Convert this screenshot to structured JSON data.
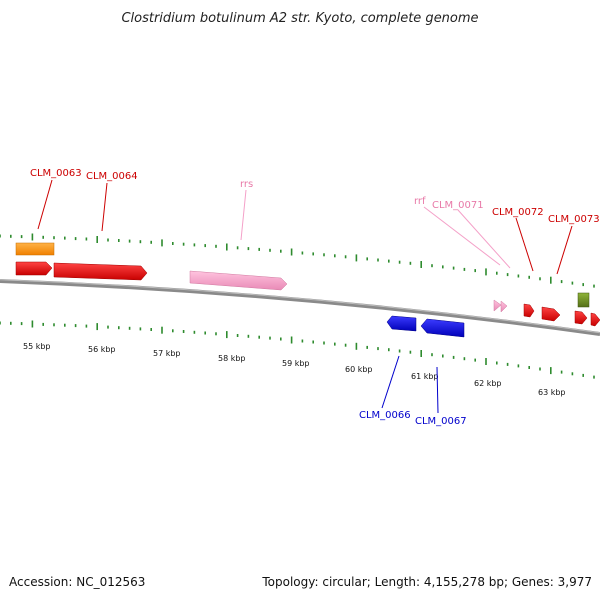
{
  "title": "Clostridium botulinum A2 str. Kyoto, complete genome",
  "footer": {
    "accession": "Accession: NC_012563",
    "topology": "Topology: circular; Length: 4,155,278 bp; Genes: 3,977"
  },
  "colors": {
    "backbone": "#777777",
    "dots": "#2e8b2e",
    "gene_red": "#e41a1c",
    "gene_pink": "#f4a0c8",
    "gene_orange": "#ff9a1a",
    "gene_blue": "#1010dd",
    "gene_olive": "#6b8e23",
    "label_red": "#cc0000",
    "label_pink": "#e87aa8",
    "label_blue": "#0000cc"
  },
  "scale_labels": [
    "55 kbp",
    "56 kbp",
    "57 kbp",
    "58 kbp",
    "59 kbp",
    "60 kbp",
    "61 kbp",
    "62 kbp",
    "63 kbp"
  ],
  "feature_labels": {
    "clm_0063": "CLM_0063",
    "clm_0064": "CLM_0064",
    "rrs": "rrs",
    "rrf": "rrf",
    "clm_0071": "CLM_0071",
    "clm_0072": "CLM_0072",
    "clm_0073": "CLM_0073",
    "clm_0066": "CLM_0066",
    "clm_0067": "CLM_0067"
  }
}
